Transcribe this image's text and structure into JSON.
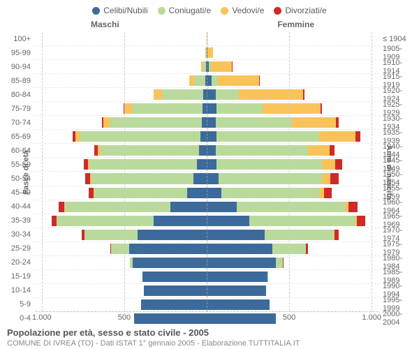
{
  "type": "population-pyramid",
  "legend": [
    {
      "label": "Celibi/Nubili",
      "color": "#3b6a9b"
    },
    {
      "label": "Coniugati/e",
      "color": "#bada9c"
    },
    {
      "label": "Vedovi/e",
      "color": "#f9c35a"
    },
    {
      "label": "Divorziati/e",
      "color": "#cf2a2a"
    }
  ],
  "header_left": "Maschi",
  "header_right": "Femmine",
  "yaxis_left": "Fasce di età",
  "yaxis_right": "Anni di nascita",
  "xmax": 1050,
  "xticks": [
    {
      "v": -1000,
      "label": "1.000"
    },
    {
      "v": -500,
      "label": "500"
    },
    {
      "v": 0,
      "label": "0"
    },
    {
      "v": 500,
      "label": "500"
    },
    {
      "v": 1000,
      "label": "1.000"
    }
  ],
  "gridlines": [
    -1000,
    -500,
    500,
    1000
  ],
  "rows": [
    {
      "age": "100+",
      "birth": "≤ 1904",
      "m": [
        0,
        0,
        0,
        0
      ],
      "f": [
        0,
        0,
        4,
        0
      ]
    },
    {
      "age": "95-99",
      "birth": "1905-1909",
      "m": [
        2,
        2,
        4,
        0
      ],
      "f": [
        3,
        2,
        35,
        0
      ]
    },
    {
      "age": "90-94",
      "birth": "1910-1914",
      "m": [
        4,
        18,
        12,
        0
      ],
      "f": [
        14,
        10,
        130,
        2
      ]
    },
    {
      "age": "85-89",
      "birth": "1915-1919",
      "m": [
        8,
        70,
        28,
        2
      ],
      "f": [
        28,
        40,
        250,
        4
      ]
    },
    {
      "age": "80-84",
      "birth": "1920-1924",
      "m": [
        20,
        250,
        50,
        4
      ],
      "f": [
        55,
        140,
        390,
        6
      ]
    },
    {
      "age": "75-79",
      "birth": "1925-1929",
      "m": [
        25,
        430,
        45,
        6
      ],
      "f": [
        60,
        280,
        350,
        10
      ]
    },
    {
      "age": "70-74",
      "birth": "1930-1934",
      "m": [
        30,
        560,
        35,
        10
      ],
      "f": [
        55,
        460,
        270,
        15
      ]
    },
    {
      "age": "65-69",
      "birth": "1935-1939",
      "m": [
        40,
        730,
        25,
        20
      ],
      "f": [
        60,
        620,
        220,
        30
      ]
    },
    {
      "age": "60-64",
      "birth": "1940-1944",
      "m": [
        45,
        600,
        15,
        20
      ],
      "f": [
        55,
        560,
        130,
        30
      ]
    },
    {
      "age": "55-59",
      "birth": "1945-1949",
      "m": [
        60,
        650,
        10,
        25
      ],
      "f": [
        60,
        640,
        80,
        40
      ]
    },
    {
      "age": "50-54",
      "birth": "1950-1954",
      "m": [
        80,
        620,
        6,
        30
      ],
      "f": [
        70,
        630,
        50,
        50
      ]
    },
    {
      "age": "45-49",
      "birth": "1955-1959",
      "m": [
        120,
        560,
        4,
        30
      ],
      "f": [
        90,
        590,
        30,
        50
      ]
    },
    {
      "age": "40-44",
      "birth": "1960-1964",
      "m": [
        220,
        640,
        3,
        35
      ],
      "f": [
        180,
        660,
        20,
        55
      ]
    },
    {
      "age": "35-39",
      "birth": "1965-1969",
      "m": [
        320,
        590,
        2,
        30
      ],
      "f": [
        260,
        640,
        12,
        50
      ]
    },
    {
      "age": "30-34",
      "birth": "1970-1974",
      "m": [
        420,
        320,
        1,
        15
      ],
      "f": [
        350,
        420,
        6,
        25
      ]
    },
    {
      "age": "25-29",
      "birth": "1975-1979",
      "m": [
        470,
        110,
        0,
        5
      ],
      "f": [
        400,
        200,
        2,
        10
      ]
    },
    {
      "age": "20-24",
      "birth": "1980-1984",
      "m": [
        450,
        15,
        0,
        1
      ],
      "f": [
        420,
        40,
        0,
        2
      ]
    },
    {
      "age": "15-19",
      "birth": "1985-1989",
      "m": [
        390,
        0,
        0,
        0
      ],
      "f": [
        370,
        2,
        0,
        0
      ]
    },
    {
      "age": "10-14",
      "birth": "1990-1994",
      "m": [
        380,
        0,
        0,
        0
      ],
      "f": [
        360,
        0,
        0,
        0
      ]
    },
    {
      "age": "5-9",
      "birth": "1995-1999",
      "m": [
        400,
        0,
        0,
        0
      ],
      "f": [
        380,
        0,
        0,
        0
      ]
    },
    {
      "age": "0-4",
      "birth": "2000-2004",
      "m": [
        440,
        0,
        0,
        0
      ],
      "f": [
        420,
        0,
        0,
        0
      ]
    }
  ],
  "footer": {
    "title": "Popolazione per età, sesso e stato civile - 2005",
    "subtitle": "COMUNE DI IVREA (TO) - Dati ISTAT 1° gennaio 2005 - Elaborazione TUTTITALIA.IT"
  },
  "style": {
    "bg": "#ffffff",
    "grid": "#cccccc",
    "text": "#5b5b5b",
    "font_size_label": 11,
    "font_size_title": 13
  }
}
